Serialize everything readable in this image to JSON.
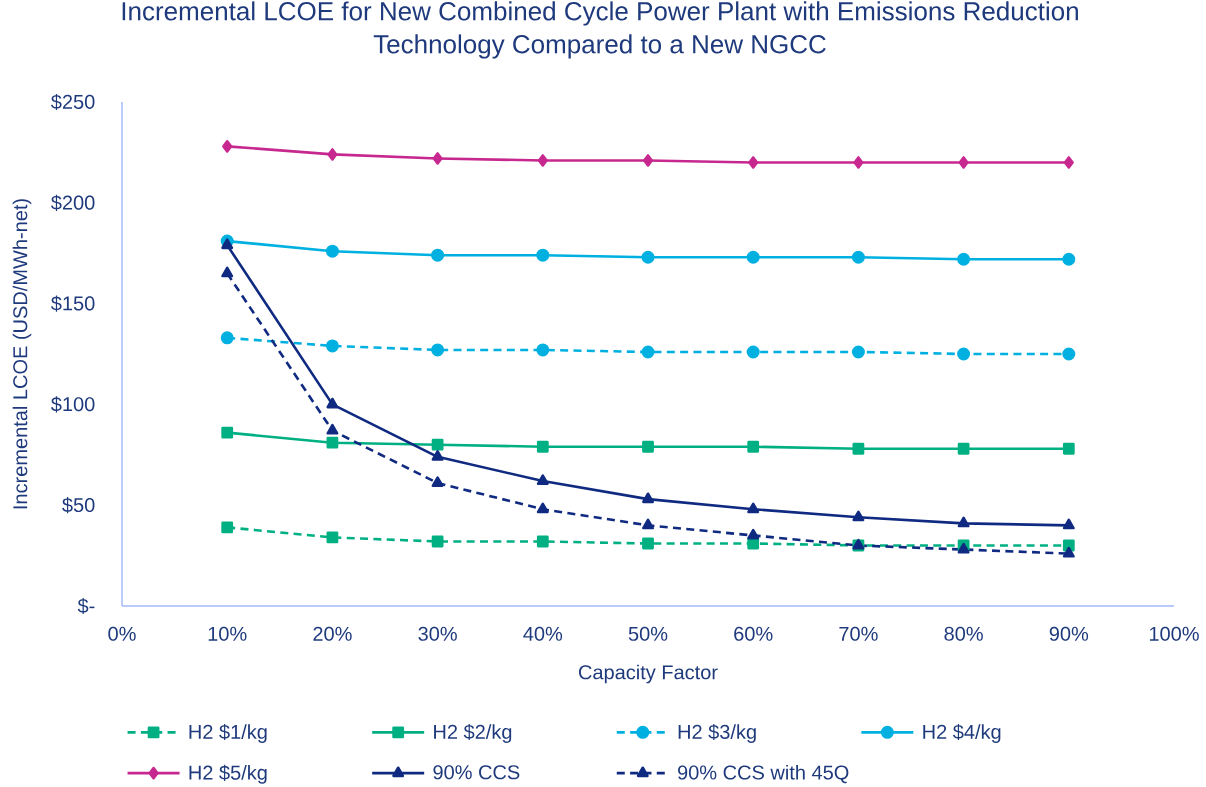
{
  "chart_data": {
    "type": "line",
    "title": "Incremental LCOE for New Combined Cycle Power Plant with Emissions Reduction Technology Compared to a New NGCC",
    "xlabel": "Capacity Factor",
    "ylabel": "Incremental LCOE (USD/MWh-net)",
    "x": [
      10,
      20,
      30,
      40,
      50,
      60,
      70,
      80,
      90
    ],
    "xlim": [
      0,
      100
    ],
    "xticks": [
      {
        "value": 0,
        "label": "0%"
      },
      {
        "value": 10,
        "label": "10%"
      },
      {
        "value": 20,
        "label": "20%"
      },
      {
        "value": 30,
        "label": "30%"
      },
      {
        "value": 40,
        "label": "40%"
      },
      {
        "value": 50,
        "label": "50%"
      },
      {
        "value": 60,
        "label": "60%"
      },
      {
        "value": 70,
        "label": "70%"
      },
      {
        "value": 80,
        "label": "80%"
      },
      {
        "value": 90,
        "label": "90%"
      },
      {
        "value": 100,
        "label": "100%"
      }
    ],
    "ylim": [
      0,
      250
    ],
    "yticks": [
      {
        "value": 0,
        "label": "$-"
      },
      {
        "value": 50,
        "label": "$50"
      },
      {
        "value": 100,
        "label": "$100"
      },
      {
        "value": 150,
        "label": "$150"
      },
      {
        "value": 200,
        "label": "$200"
      },
      {
        "value": 250,
        "label": "$250"
      }
    ],
    "legend": "bottom",
    "series": [
      {
        "name": "H2 $1/kg",
        "color": "#00b083",
        "marker": "square",
        "line_style": "dashed",
        "values": [
          39,
          34,
          32,
          32,
          31,
          31,
          30,
          30,
          30
        ]
      },
      {
        "name": "H2 $2/kg",
        "color": "#00b083",
        "marker": "square",
        "line_style": "solid",
        "values": [
          86,
          81,
          80,
          79,
          79,
          79,
          78,
          78,
          78
        ]
      },
      {
        "name": "H2 $3/kg",
        "color": "#00b0e0",
        "marker": "circle",
        "line_style": "dashed",
        "values": [
          133,
          129,
          127,
          127,
          126,
          126,
          126,
          125,
          125
        ]
      },
      {
        "name": "H2 $4/kg",
        "color": "#00b0e0",
        "marker": "circle",
        "line_style": "solid",
        "values": [
          181,
          176,
          174,
          174,
          173,
          173,
          173,
          172,
          172
        ]
      },
      {
        "name": "H2 $5/kg",
        "color": "#c7288f",
        "marker": "diamond",
        "line_style": "solid",
        "values": [
          228,
          224,
          222,
          221,
          221,
          220,
          220,
          220,
          220
        ]
      },
      {
        "name": "90% CCS",
        "color": "#0f2a80",
        "marker": "triangle",
        "line_style": "solid",
        "values": [
          179,
          100,
          74,
          62,
          53,
          48,
          44,
          41,
          40
        ]
      },
      {
        "name": "90% CCS with 45Q",
        "color": "#0f2a80",
        "marker": "triangle",
        "line_style": "dashed",
        "values": [
          165,
          87,
          61,
          48,
          40,
          35,
          30,
          28,
          26
        ]
      }
    ]
  }
}
